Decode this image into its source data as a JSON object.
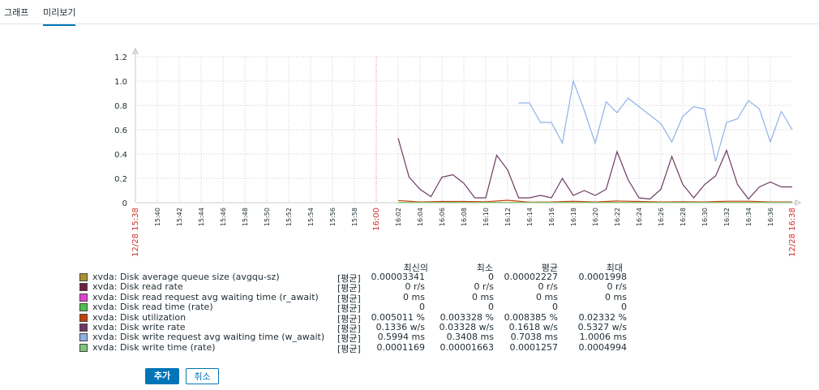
{
  "tabs": [
    {
      "label": "그래프"
    },
    {
      "label": "미리보기"
    }
  ],
  "chart_data": {
    "type": "line",
    "ylim": [
      0,
      1.2
    ],
    "yticks": [
      "1.2",
      "1.0",
      "0.8",
      "0.6",
      "0.4",
      "0.2",
      "0"
    ],
    "xlim": [
      "15:38",
      "16:38"
    ],
    "start_label": "12/28 15:38",
    "end_label": "12/28 16:38",
    "xticks": [
      {
        "label": "15:40",
        "minute": 2
      },
      {
        "label": "15:42",
        "minute": 4
      },
      {
        "label": "15:44",
        "minute": 6
      },
      {
        "label": "15:46",
        "minute": 8
      },
      {
        "label": "15:48",
        "minute": 10
      },
      {
        "label": "15:50",
        "minute": 12
      },
      {
        "label": "15:52",
        "minute": 14
      },
      {
        "label": "15:54",
        "minute": 16
      },
      {
        "label": "15:56",
        "minute": 18
      },
      {
        "label": "15:58",
        "minute": 20
      },
      {
        "label": "16:00",
        "minute": 22,
        "highlight": true
      },
      {
        "label": "16:02",
        "minute": 24
      },
      {
        "label": "16:04",
        "minute": 26
      },
      {
        "label": "16:06",
        "minute": 28
      },
      {
        "label": "16:08",
        "minute": 30
      },
      {
        "label": "16:10",
        "minute": 32
      },
      {
        "label": "16:12",
        "minute": 34
      },
      {
        "label": "16:14",
        "minute": 36
      },
      {
        "label": "16:16",
        "minute": 38
      },
      {
        "label": "16:18",
        "minute": 40
      },
      {
        "label": "16:20",
        "minute": 42
      },
      {
        "label": "16:22",
        "minute": 44
      },
      {
        "label": "16:24",
        "minute": 46
      },
      {
        "label": "16:26",
        "minute": 48
      },
      {
        "label": "16:28",
        "minute": 50
      },
      {
        "label": "16:30",
        "minute": 52
      },
      {
        "label": "16:32",
        "minute": 54
      },
      {
        "label": "16:34",
        "minute": 56
      },
      {
        "label": "16:36",
        "minute": 58
      }
    ],
    "series": [
      {
        "name": "xvda: Disk write rate",
        "color": "#6c3a63",
        "x": [
          24,
          25,
          26,
          27,
          28,
          29,
          30,
          31,
          32,
          33,
          34,
          35,
          36,
          37,
          38,
          39,
          40,
          41,
          42,
          43,
          44,
          45,
          46,
          47,
          48,
          49,
          50,
          51,
          52,
          53,
          54,
          55,
          56,
          57,
          58,
          59,
          60
        ],
        "y": [
          0.53,
          0.21,
          0.11,
          0.05,
          0.21,
          0.23,
          0.16,
          0.04,
          0.04,
          0.39,
          0.27,
          0.04,
          0.04,
          0.06,
          0.04,
          0.2,
          0.06,
          0.1,
          0.06,
          0.11,
          0.42,
          0.19,
          0.04,
          0.03,
          0.11,
          0.38,
          0.15,
          0.04,
          0.15,
          0.22,
          0.43,
          0.15,
          0.03,
          0.13,
          0.17,
          0.13,
          0.13
        ]
      },
      {
        "name": "xvda: Disk write request avg waiting time (w_await)",
        "color": "#8fb1e8",
        "x": [
          35,
          36,
          37,
          38,
          39,
          40,
          41,
          42,
          43,
          44,
          45,
          46,
          47,
          48,
          49,
          50,
          51,
          52,
          53,
          54,
          55,
          56,
          57,
          58,
          59,
          60
        ],
        "y": [
          0.82,
          0.82,
          0.66,
          0.66,
          0.49,
          1.0,
          0.76,
          0.49,
          0.83,
          0.74,
          0.86,
          0.79,
          0.72,
          0.65,
          0.5,
          0.71,
          0.79,
          0.77,
          0.34,
          0.66,
          0.69,
          0.84,
          0.77,
          0.5,
          0.75,
          0.6
        ]
      },
      {
        "name": "xvda: Disk utilization",
        "color": "#c2410c",
        "x": [
          24,
          26,
          28,
          30,
          32,
          34,
          36,
          38,
          40,
          42,
          44,
          46,
          48,
          50,
          52,
          54,
          56,
          58,
          60
        ],
        "y": [
          0.018,
          0.006,
          0.01,
          0.01,
          0.008,
          0.02,
          0.005,
          0.006,
          0.012,
          0.006,
          0.014,
          0.01,
          0.006,
          0.008,
          0.006,
          0.012,
          0.012,
          0.006,
          0.006
        ]
      },
      {
        "name": "xvda: Disk average queue size (avgqu-sz)",
        "color": "#a8922d",
        "x": [
          24,
          60
        ],
        "y": [
          0.002,
          0.002
        ]
      },
      {
        "name": "xvda: Disk write time (rate)",
        "color": "#7ec67b",
        "x": [
          24,
          60
        ],
        "y": [
          0.001,
          0.001
        ]
      }
    ]
  },
  "legend": {
    "headers": [
      "최신의",
      "최소",
      "평균",
      "최대"
    ],
    "rows": [
      {
        "color": "#a8922d",
        "name": "xvda: Disk average queue size (avgqu-sz)",
        "fn": "[평균]",
        "vals": [
          "0.00003341",
          "0",
          "0.00002227",
          "0.0001998"
        ]
      },
      {
        "color": "#6f1f3f",
        "name": "xvda: Disk read rate",
        "fn": "[평균]",
        "vals": [
          "0 r/s",
          "0 r/s",
          "0 r/s",
          "0 r/s"
        ]
      },
      {
        "color": "#e040d6",
        "name": "xvda: Disk read request avg waiting time (r_await)",
        "fn": "[평균]",
        "vals": [
          "0 ms",
          "0 ms",
          "0 ms",
          "0 ms"
        ]
      },
      {
        "color": "#4fbf4f",
        "name": "xvda: Disk read time (rate)",
        "fn": "[평균]",
        "vals": [
          "0",
          "0",
          "0",
          "0"
        ]
      },
      {
        "color": "#c2410c",
        "name": "xvda: Disk utilization",
        "fn": "[평균]",
        "vals": [
          "0.005011 %",
          "0.003328 %",
          "0.008385 %",
          "0.02332 %"
        ]
      },
      {
        "color": "#6c3a63",
        "name": "xvda: Disk write rate",
        "fn": "[평균]",
        "vals": [
          "0.1336 w/s",
          "0.03328 w/s",
          "0.1618 w/s",
          "0.5327 w/s"
        ]
      },
      {
        "color": "#8fb1e8",
        "name": "xvda: Disk write request avg waiting time (w_await)",
        "fn": "[평균]",
        "vals": [
          "0.5994 ms",
          "0.3408 ms",
          "0.7038 ms",
          "1.0006 ms"
        ]
      },
      {
        "color": "#7ec67b",
        "name": "xvda: Disk write time (rate)",
        "fn": "[평균]",
        "vals": [
          "0.0001169",
          "0.00001663",
          "0.0001257",
          "0.0004994"
        ]
      }
    ]
  },
  "buttons": {
    "add": "추가",
    "cancel": "취소"
  }
}
